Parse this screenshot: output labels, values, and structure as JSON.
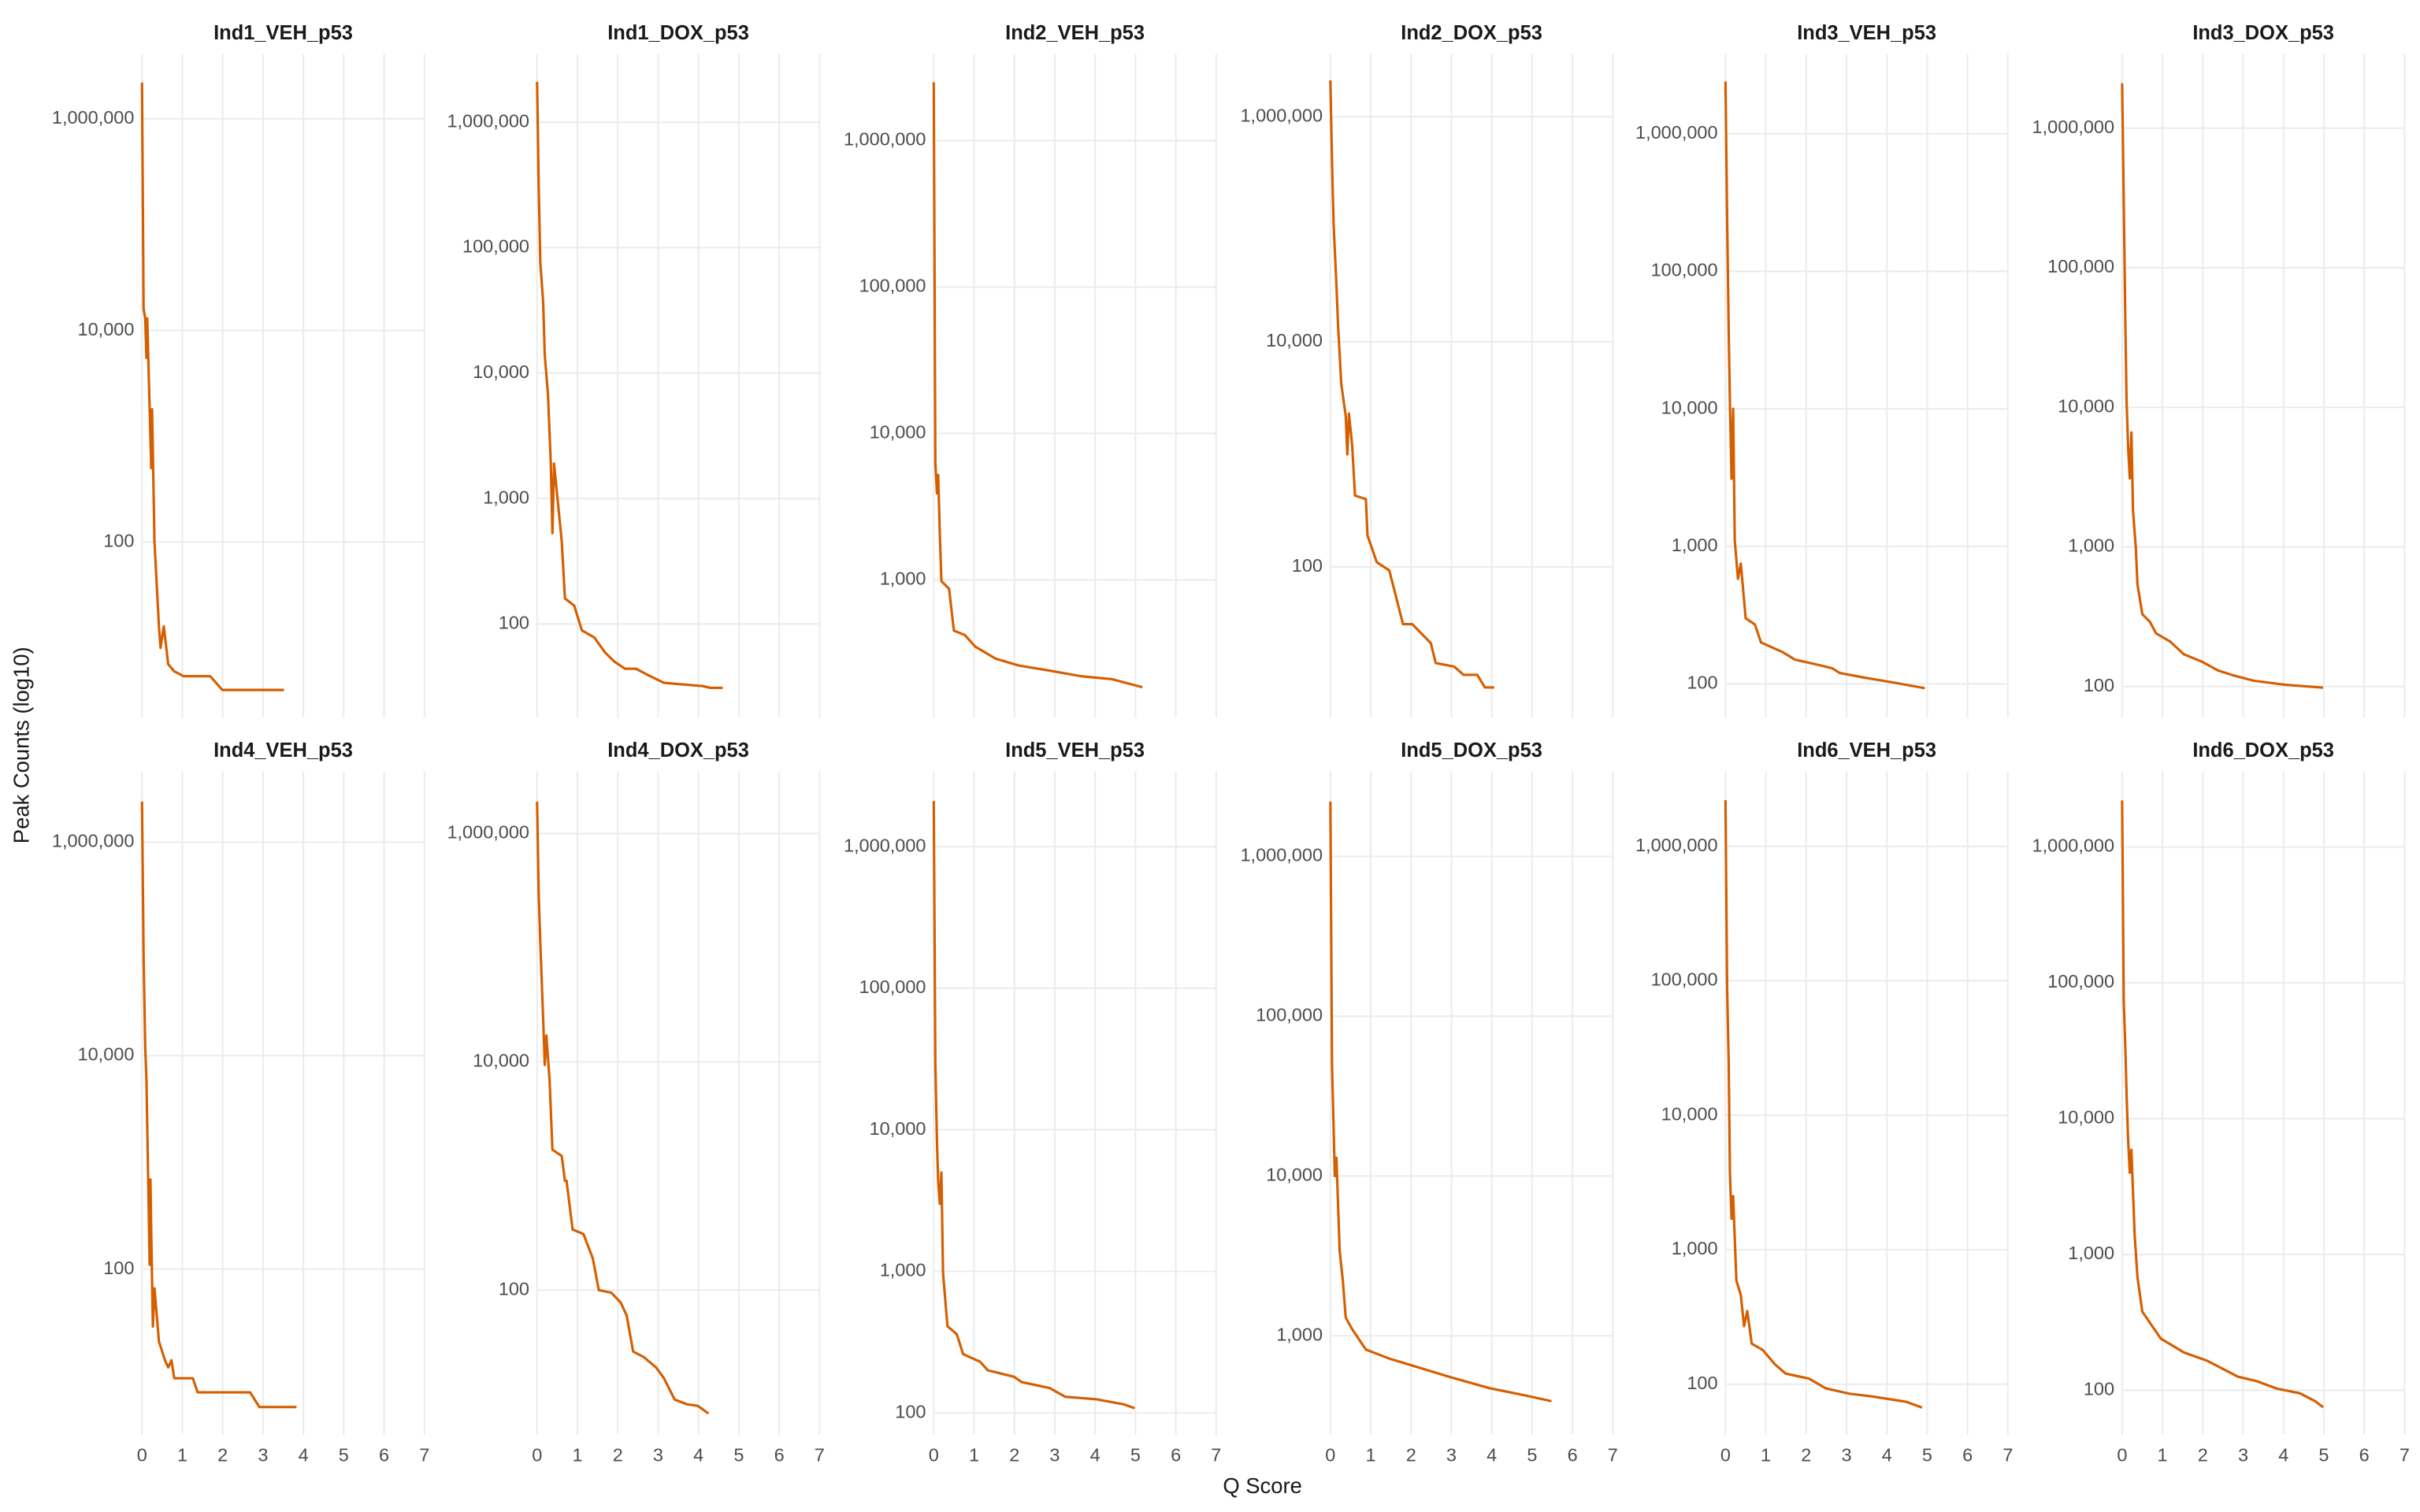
{
  "x_label": "Q Score",
  "y_label": "Peak Counts (log10)",
  "chart_data": [
    {
      "type": "line",
      "title": "Ind1_VEH_p53",
      "log_y": true,
      "grid": true,
      "xlim": [
        0,
        7
      ],
      "xticks": [
        0,
        1,
        2,
        3,
        4,
        5,
        6,
        7
      ],
      "ylim": [
        2.2,
        4100000
      ],
      "yticks": [
        100,
        {
          "value": 10000,
          "label": "10,000"
        },
        {
          "value": 1000000,
          "label": "1,000,000"
        }
      ],
      "x": [
        0,
        0.04,
        0.08,
        0.11,
        0.13,
        0.19,
        0.23,
        0.25,
        0.31,
        0.42,
        0.46,
        0.54,
        0.65,
        0.8,
        1.03,
        1.69,
        1.99,
        3.52
      ],
      "series": [
        {
          "color": "#d55e00",
          "values": [
            2200000,
            16000,
            13000,
            5500,
            13000,
            1800,
            500,
            1800,
            100,
            16,
            10,
            16,
            7,
            6,
            5.4,
            5.4,
            4,
            4
          ]
        }
      ]
    },
    {
      "type": "line",
      "title": "Ind1_DOX_p53",
      "log_y": true,
      "grid": true,
      "xlim": [
        0,
        7
      ],
      "xticks": [
        0,
        1,
        2,
        3,
        4,
        5,
        6,
        7
      ],
      "ylim": [
        18,
        3500000
      ],
      "yticks": [
        100,
        {
          "value": 1000,
          "label": "1,000"
        },
        {
          "value": 10000,
          "label": "10,000"
        },
        {
          "value": 100000,
          "label": "100,000"
        },
        {
          "value": 1000000,
          "label": "1,000,000"
        }
      ],
      "x": [
        0,
        0.04,
        0.08,
        0.15,
        0.19,
        0.27,
        0.34,
        0.38,
        0.42,
        0.61,
        0.69,
        0.92,
        1.11,
        1.42,
        1.69,
        1.92,
        2.18,
        2.45,
        2.76,
        3.14,
        3.6,
        4.1,
        4.29,
        4.6
      ],
      "series": [
        {
          "color": "#d55e00",
          "values": [
            2100000,
            310000,
            76000,
            37000,
            14000,
            6700,
            1900,
            530,
            1900,
            460,
            160,
            140,
            89,
            78,
            59,
            50,
            44,
            44,
            39,
            34,
            33,
            32,
            31,
            31
          ]
        }
      ]
    },
    {
      "type": "line",
      "title": "Ind2_VEH_p53",
      "log_y": true,
      "grid": true,
      "xlim": [
        0,
        7
      ],
      "xticks": [
        0,
        1,
        2,
        3,
        4,
        5,
        6,
        7
      ],
      "ylim": [
        115,
        3900000
      ],
      "yticks": [
        {
          "value": 1000,
          "label": "1,000"
        },
        {
          "value": 10000,
          "label": "10,000"
        },
        {
          "value": 100000,
          "label": "100,000"
        },
        {
          "value": 1000000,
          "label": "1,000,000"
        }
      ],
      "x": [
        0,
        0.04,
        0.08,
        0.11,
        0.15,
        0.19,
        0.38,
        0.5,
        0.77,
        1.03,
        1.53,
        2.11,
        2.87,
        3.64,
        4.41,
        5.17
      ],
      "series": [
        {
          "color": "#d55e00",
          "values": [
            2500000,
            6300,
            3900,
            5200,
            2100,
            980,
            870,
            450,
            420,
            350,
            290,
            260,
            240,
            220,
            210,
            185
          ]
        }
      ]
    },
    {
      "type": "line",
      "title": "Ind2_DOX_p53",
      "log_y": true,
      "grid": true,
      "xlim": [
        0,
        7
      ],
      "xticks": [
        0,
        1,
        2,
        3,
        4,
        5,
        6,
        7
      ],
      "ylim": [
        4.6,
        3600000
      ],
      "yticks": [
        100,
        {
          "value": 10000,
          "label": "10,000"
        },
        {
          "value": 1000000,
          "label": "1,000,000"
        }
      ],
      "x": [
        0,
        0.04,
        0.08,
        0.15,
        0.19,
        0.27,
        0.38,
        0.42,
        0.46,
        0.54,
        0.61,
        0.88,
        0.92,
        1.15,
        1.46,
        1.8,
        2.03,
        2.49,
        2.61,
        3.07,
        3.3,
        3.64,
        3.83,
        4.06
      ],
      "series": [
        {
          "color": "#d55e00",
          "values": [
            2100000,
            400000,
            110000,
            32000,
            14000,
            4200,
            2200,
            1000,
            2300,
            1200,
            430,
            400,
            190,
            110,
            93,
            31,
            31,
            21,
            14,
            13,
            11,
            11,
            8.5,
            8.5
          ]
        }
      ]
    },
    {
      "type": "line",
      "title": "Ind3_VEH_p53",
      "log_y": true,
      "grid": true,
      "xlim": [
        0,
        7
      ],
      "xticks": [
        0,
        1,
        2,
        3,
        4,
        5,
        6,
        7
      ],
      "ylim": [
        57,
        3800000
      ],
      "yticks": [
        100,
        {
          "value": 1000,
          "label": "1,000"
        },
        {
          "value": 10000,
          "label": "10,000"
        },
        {
          "value": 100000,
          "label": "100,000"
        },
        {
          "value": 1000000,
          "label": "1,000,000"
        }
      ],
      "x": [
        0,
        0.04,
        0.08,
        0.11,
        0.15,
        0.19,
        0.23,
        0.31,
        0.38,
        0.5,
        0.73,
        0.88,
        1.42,
        1.72,
        2.18,
        2.64,
        2.83,
        3.52,
        4.1,
        4.94
      ],
      "series": [
        {
          "color": "#d55e00",
          "values": [
            2400000,
            250000,
            36000,
            11000,
            3100,
            10000,
            1100,
            580,
            750,
            300,
            270,
            200,
            170,
            150,
            140,
            130,
            120,
            110,
            103,
            93
          ]
        }
      ]
    },
    {
      "type": "line",
      "title": "Ind3_DOX_p53",
      "log_y": true,
      "grid": true,
      "xlim": [
        0,
        7
      ],
      "xticks": [
        0,
        1,
        2,
        3,
        4,
        5,
        6,
        7
      ],
      "ylim": [
        60,
        3400000
      ],
      "yticks": [
        100,
        {
          "value": 1000,
          "label": "1,000"
        },
        {
          "value": 10000,
          "label": "10,000"
        },
        {
          "value": 100000,
          "label": "100,000"
        },
        {
          "value": 1000000,
          "label": "1,000,000"
        }
      ],
      "x": [
        0,
        0.04,
        0.08,
        0.11,
        0.15,
        0.19,
        0.23,
        0.27,
        0.34,
        0.38,
        0.5,
        0.69,
        0.84,
        1.19,
        1.53,
        1.99,
        2.38,
        2.76,
        3.26,
        4.02,
        4.98
      ],
      "series": [
        {
          "color": "#d55e00",
          "values": [
            2100000,
            300000,
            40000,
            11000,
            5100,
            3100,
            6600,
            1800,
            980,
            540,
            330,
            290,
            240,
            210,
            170,
            150,
            130,
            120,
            110,
            103,
            98
          ]
        }
      ]
    },
    {
      "type": "line",
      "title": "Ind4_VEH_p53",
      "log_y": true,
      "grid": true,
      "xlim": [
        0,
        7
      ],
      "xticks": [
        0,
        1,
        2,
        3,
        4,
        5,
        6,
        7
      ],
      "ylim": [
        2.8,
        4600000
      ],
      "yticks": [
        100,
        {
          "value": 10000,
          "label": "10,000"
        },
        {
          "value": 1000000,
          "label": "1,000,000"
        }
      ],
      "x": [
        0,
        0.04,
        0.08,
        0.11,
        0.15,
        0.19,
        0.21,
        0.23,
        0.27,
        0.31,
        0.42,
        0.57,
        0.65,
        0.73,
        0.8,
        1.26,
        1.38,
        2.68,
        2.91,
        3.83
      ],
      "series": [
        {
          "color": "#d55e00",
          "values": [
            2400000,
            85000,
            12000,
            6000,
            810,
            110,
            690,
            210,
            29,
            66,
            21,
            14,
            12,
            14,
            9.5,
            9.5,
            7,
            7,
            5.1,
            5.1
          ]
        }
      ]
    },
    {
      "type": "line",
      "title": "Ind4_DOX_p53",
      "log_y": true,
      "grid": true,
      "xlim": [
        0,
        7
      ],
      "xticks": [
        0,
        1,
        2,
        3,
        4,
        5,
        6,
        7
      ],
      "ylim": [
        5.4,
        3500000
      ],
      "yticks": [
        100,
        {
          "value": 10000,
          "label": "10,000"
        },
        {
          "value": 1000000,
          "label": "1,000,000"
        }
      ],
      "x": [
        0,
        0.04,
        0.08,
        0.15,
        0.19,
        0.23,
        0.31,
        0.38,
        0.61,
        0.69,
        0.73,
        0.88,
        1.15,
        1.38,
        1.53,
        1.84,
        2.07,
        2.22,
        2.38,
        2.64,
        2.95,
        3.14,
        3.41,
        3.72,
        3.98,
        4.25
      ],
      "series": [
        {
          "color": "#d55e00",
          "values": [
            1900000,
            290000,
            110000,
            24000,
            9400,
            17000,
            6900,
            1700,
            1500,
            910,
            910,
            340,
            310,
            190,
            100,
            95,
            78,
            60,
            29,
            26,
            21,
            17,
            11,
            10,
            9.7,
            8.3
          ]
        }
      ]
    },
    {
      "type": "line",
      "title": "Ind5_VEH_p53",
      "log_y": true,
      "grid": true,
      "xlim": [
        0,
        7
      ],
      "xticks": [
        0,
        1,
        2,
        3,
        4,
        5,
        6,
        7
      ],
      "ylim": [
        70,
        3400000
      ],
      "yticks": [
        100,
        {
          "value": 1000,
          "label": "1,000"
        },
        {
          "value": 10000,
          "label": "10,000"
        },
        {
          "value": 100000,
          "label": "100,000"
        },
        {
          "value": 1000000,
          "label": "1,000,000"
        }
      ],
      "x": [
        0,
        0.04,
        0.08,
        0.11,
        0.15,
        0.19,
        0.23,
        0.34,
        0.57,
        0.73,
        1.15,
        1.34,
        1.99,
        2.18,
        2.87,
        3.26,
        4.02,
        4.71,
        4.98
      ],
      "series": [
        {
          "color": "#d55e00",
          "values": [
            2100000,
            29000,
            8200,
            4300,
            3000,
            5000,
            980,
            410,
            360,
            260,
            230,
            200,
            180,
            165,
            150,
            130,
            125,
            115,
            108
          ]
        }
      ]
    },
    {
      "type": "line",
      "title": "Ind5_DOX_p53",
      "log_y": true,
      "grid": true,
      "xlim": [
        0,
        7
      ],
      "xticks": [
        0,
        1,
        2,
        3,
        4,
        5,
        6,
        7
      ],
      "ylim": [
        240,
        3400000
      ],
      "yticks": [
        {
          "value": 1000,
          "label": "1,000"
        },
        {
          "value": 10000,
          "label": "10,000"
        },
        {
          "value": 100000,
          "label": "100,000"
        },
        {
          "value": 1000000,
          "label": "1,000,000"
        }
      ],
      "x": [
        0,
        0.04,
        0.08,
        0.11,
        0.15,
        0.23,
        0.31,
        0.38,
        0.54,
        0.88,
        1.46,
        2.22,
        2.99,
        3.95,
        4.9,
        5.48
      ],
      "series": [
        {
          "color": "#d55e00",
          "values": [
            2200000,
            50000,
            20000,
            10000,
            13000,
            3400,
            2200,
            1300,
            1100,
            820,
            720,
            630,
            550,
            470,
            420,
            390
          ]
        }
      ]
    },
    {
      "type": "line",
      "title": "Ind6_VEH_p53",
      "log_y": true,
      "grid": true,
      "xlim": [
        0,
        7
      ],
      "xticks": [
        0,
        1,
        2,
        3,
        4,
        5,
        6,
        7
      ],
      "ylim": [
        42,
        3600000
      ],
      "yticks": [
        100,
        {
          "value": 1000,
          "label": "1,000"
        },
        {
          "value": 10000,
          "label": "10,000"
        },
        {
          "value": 100000,
          "label": "100,000"
        },
        {
          "value": 1000000,
          "label": "1,000,000"
        }
      ],
      "x": [
        0,
        0.04,
        0.08,
        0.11,
        0.15,
        0.19,
        0.27,
        0.38,
        0.46,
        0.54,
        0.65,
        0.92,
        1.23,
        1.49,
        2.07,
        2.49,
        3.07,
        3.64,
        4.48,
        4.87
      ],
      "series": [
        {
          "color": "#d55e00",
          "values": [
            2200000,
            90000,
            24000,
            3700,
            1700,
            2500,
            590,
            460,
            270,
            350,
            200,
            180,
            140,
            120,
            110,
            93,
            85,
            81,
            74,
            67
          ]
        }
      ]
    },
    {
      "type": "line",
      "title": "Ind6_DOX_p53",
      "log_y": true,
      "grid": true,
      "xlim": [
        0,
        7
      ],
      "xticks": [
        0,
        1,
        2,
        3,
        4,
        5,
        6,
        7
      ],
      "ylim": [
        47,
        3600000
      ],
      "yticks": [
        100,
        {
          "value": 1000,
          "label": "1,000"
        },
        {
          "value": 10000,
          "label": "10,000"
        },
        {
          "value": 100000,
          "label": "100,000"
        },
        {
          "value": 1000000,
          "label": "1,000,000"
        }
      ],
      "x": [
        0,
        0.04,
        0.08,
        0.11,
        0.15,
        0.19,
        0.23,
        0.31,
        0.38,
        0.5,
        0.77,
        0.96,
        1.53,
        2.11,
        2.87,
        3.33,
        3.83,
        4.41,
        4.79,
        4.98
      ],
      "series": [
        {
          "color": "#d55e00",
          "values": [
            2200000,
            73000,
            33000,
            15000,
            6800,
            4000,
            5900,
            1400,
            680,
            380,
            290,
            240,
            190,
            165,
            126,
            117,
            103,
            95,
            83,
            75
          ]
        }
      ]
    }
  ]
}
